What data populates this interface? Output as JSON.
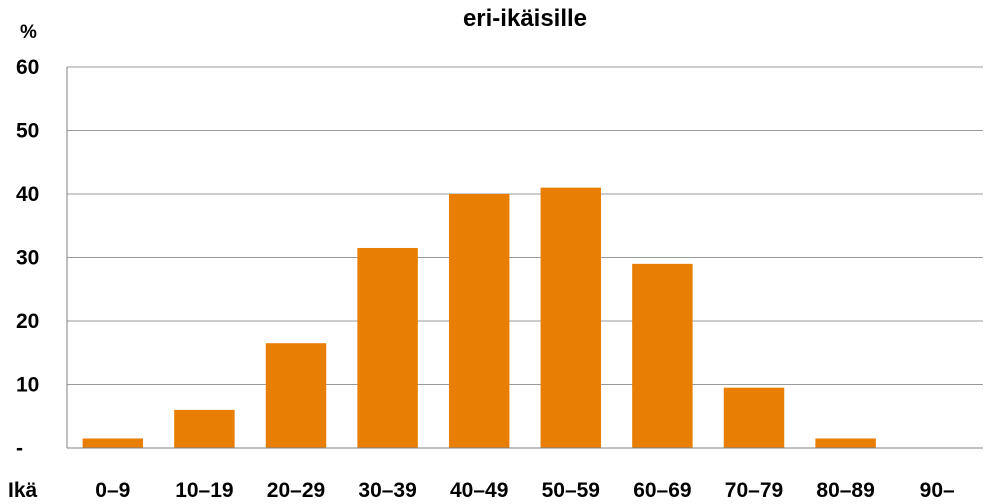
{
  "chart_data": {
    "type": "bar",
    "title": "eri-ikäisille",
    "ylabel": "%",
    "xlabel": "Ikä",
    "categories": [
      "0–9",
      "10–19",
      "20–29",
      "30–39",
      "40–49",
      "50–59",
      "60–69",
      "70–79",
      "80–89",
      "90–"
    ],
    "values": [
      1.5,
      6,
      16.5,
      31.5,
      40,
      41,
      29,
      9.5,
      1.5,
      0
    ],
    "ylim": [
      0,
      60
    ],
    "yticks": [
      0,
      10,
      20,
      30,
      40,
      50,
      60
    ],
    "ytick_labels": [
      "-",
      "10",
      "20",
      "30",
      "40",
      "50",
      "60"
    ],
    "grid": true,
    "legend": "none",
    "colors": {
      "bar": "#E87E04",
      "grid": "#9a9a9a",
      "axis": "#808080"
    }
  }
}
